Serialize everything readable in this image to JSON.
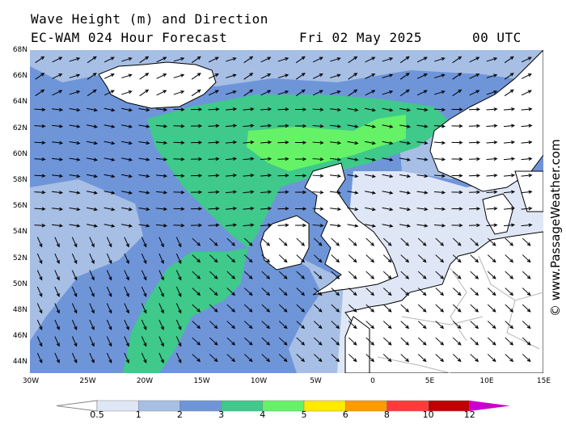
{
  "title": {
    "line1": "Wave Height (m) and Direction",
    "line2_left": "EC-WAM 024 Hour Forecast",
    "line2_date": "Fri 02 May 2025",
    "line2_time": "00 UTC"
  },
  "credit": "© www.PassageWeather.com",
  "axes": {
    "lat_labels": [
      "68N",
      "66N",
      "64N",
      "62N",
      "60N",
      "58N",
      "56N",
      "54N",
      "52N",
      "50N",
      "48N",
      "46N",
      "44N"
    ],
    "lon_labels": [
      "30W",
      "25W",
      "20W",
      "15W",
      "10W",
      "5W",
      "0",
      "5E",
      "10E",
      "15E"
    ]
  },
  "legend": {
    "ticks": [
      "0.5",
      "1",
      "2",
      "3",
      "4",
      "5",
      "6",
      "8",
      "10",
      "12"
    ],
    "colors": [
      "#ffffff",
      "#dfe7f6",
      "#a7bfe5",
      "#6f95d9",
      "#3fc98a",
      "#66f266",
      "#ffea00",
      "#ff9a00",
      "#ff3a3a",
      "#c00000",
      "#cc00cc"
    ]
  },
  "map_colors": {
    "land": "#ffffff",
    "coast": "#000000",
    "border": "#b4b4b4"
  }
}
